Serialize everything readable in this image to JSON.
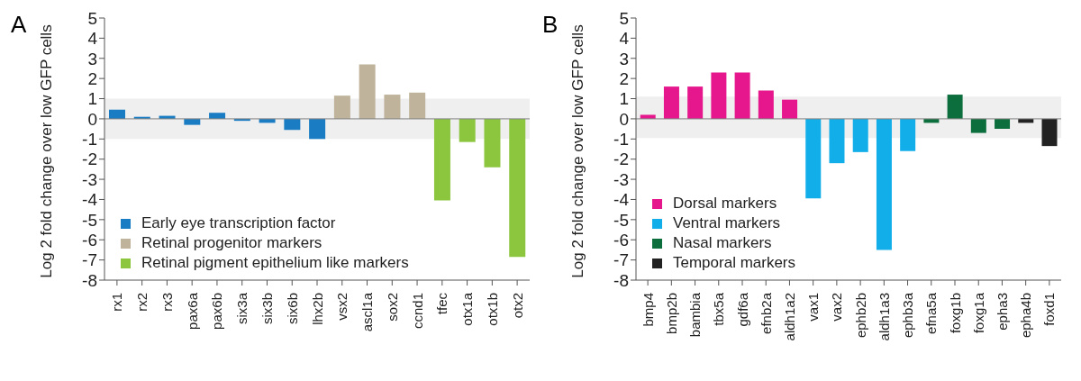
{
  "chart_data": [
    {
      "type": "bar",
      "title": "A",
      "ylabel": "Log 2 fold change over low GFP cells",
      "stacked": true,
      "categories": [
        "rx1",
        "rx2",
        "rx3",
        "pax6a",
        "pax6b",
        "six3a",
        "six3b",
        "six6b",
        "lhx2b",
        "vsx2",
        "ascl1a",
        "sox2",
        "ccnd1",
        "tfec",
        "otx1a",
        "otx1b",
        "otx2"
      ],
      "series": [
        {
          "name": "Early eye transcription factor",
          "color": "#1a7dc4",
          "values": [
            0.45,
            0.1,
            0.15,
            -0.3,
            0.3,
            -0.1,
            -0.2,
            -0.55,
            -1.0,
            null,
            null,
            null,
            null,
            null,
            null,
            null,
            null
          ]
        },
        {
          "name": "Retinal progenitor markers",
          "color": "#bfb39b",
          "values": [
            null,
            null,
            null,
            null,
            null,
            null,
            null,
            null,
            null,
            1.15,
            2.7,
            1.2,
            1.3,
            null,
            null,
            null,
            null
          ]
        },
        {
          "name": "Retinal pigment epithelium like markers",
          "color": "#8cc63f",
          "values": [
            null,
            null,
            null,
            null,
            null,
            null,
            null,
            null,
            null,
            null,
            null,
            null,
            null,
            -4.05,
            -1.15,
            -2.4,
            -6.85
          ]
        }
      ],
      "ylim": [
        -8,
        5
      ],
      "yticks": [
        -8,
        -7,
        -6,
        -5,
        -4,
        -3,
        -2,
        -1,
        0,
        1,
        2,
        3,
        4,
        5
      ],
      "bands": [
        {
          "axis": "y",
          "from": -1,
          "to": 1,
          "color": "#efefef"
        }
      ],
      "ref_lines": [
        {
          "axis": "y",
          "value": 0,
          "color": "#808080"
        }
      ],
      "grid": false,
      "legend": "bottom left"
    },
    {
      "type": "bar",
      "title": "B",
      "ylabel": "Log 2 fold change over low GFP cells",
      "stacked": true,
      "categories": [
        "bmp4",
        "bmp2b",
        "bambia",
        "tbx5a",
        "gdf6a",
        "efnb2a",
        "aldh1a2",
        "vax1",
        "vax2",
        "ephb2b",
        "aldh1a3",
        "ephb3a",
        "efna5a",
        "foxg1b",
        "foxg1a",
        "epha3",
        "epha4b",
        "foxd1"
      ],
      "series": [
        {
          "name": "Dorsal markers",
          "color": "#e6168c",
          "values": [
            0.2,
            1.6,
            1.6,
            2.3,
            2.3,
            1.4,
            0.95,
            null,
            null,
            null,
            null,
            null,
            null,
            null,
            null,
            null,
            null,
            null
          ]
        },
        {
          "name": "Ventral markers",
          "color": "#12aeea",
          "values": [
            null,
            null,
            null,
            null,
            null,
            null,
            null,
            -3.95,
            -2.2,
            -1.65,
            -6.5,
            -1.6,
            null,
            null,
            null,
            null,
            null,
            null
          ]
        },
        {
          "name": "Nasal markers",
          "color": "#0c6e3c",
          "values": [
            null,
            null,
            null,
            null,
            null,
            null,
            null,
            null,
            null,
            null,
            null,
            null,
            -0.2,
            1.2,
            -0.7,
            -0.5,
            null,
            null
          ]
        },
        {
          "name": "Temporal markers",
          "color": "#222222",
          "values": [
            null,
            null,
            null,
            null,
            null,
            null,
            null,
            null,
            null,
            null,
            null,
            null,
            null,
            null,
            null,
            null,
            -0.2,
            -1.35
          ]
        }
      ],
      "ylim": [
        -8,
        5
      ],
      "yticks": [
        -8,
        -7,
        -6,
        -5,
        -4,
        -3,
        -2,
        -1,
        0,
        1,
        2,
        3,
        4,
        5
      ],
      "bands": [
        {
          "axis": "y",
          "from": -0.95,
          "to": 1.1,
          "color": "#efefef"
        }
      ],
      "ref_lines": [
        {
          "axis": "y",
          "value": 0,
          "color": "#808080"
        }
      ],
      "grid": false,
      "legend": "bottom left"
    }
  ]
}
